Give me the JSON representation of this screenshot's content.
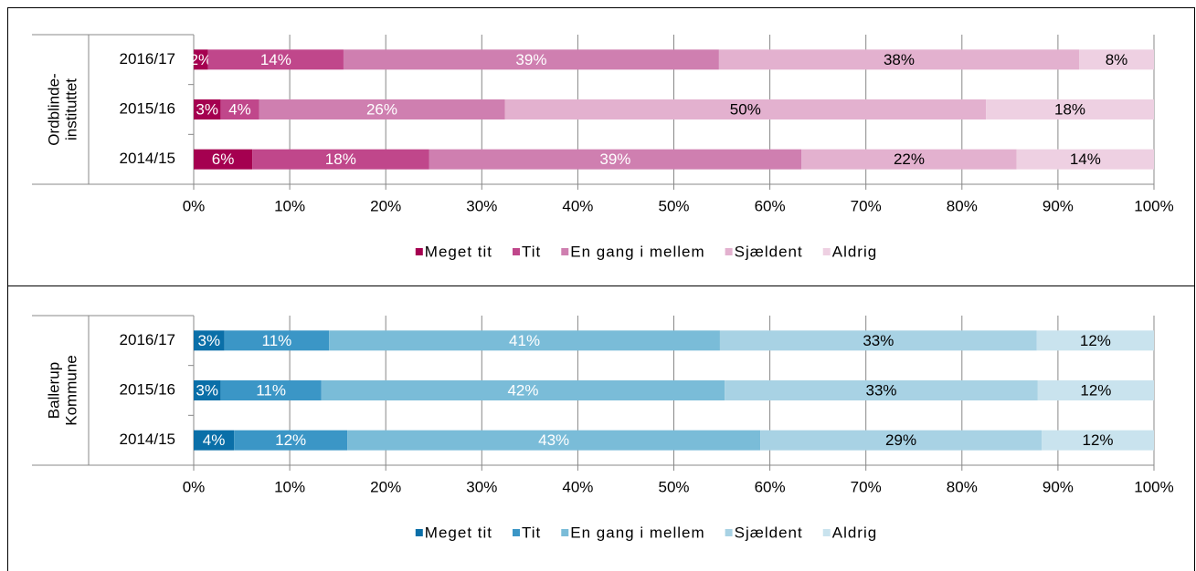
{
  "chart_data": [
    {
      "type": "stacked-bar-horizontal",
      "group_label": [
        "Ordblinde-",
        "instituttet"
      ],
      "categories": [
        "2016/17",
        "2015/16",
        "2014/15"
      ],
      "series": [
        {
          "name": "Meget tit",
          "color": "#a50050",
          "label_color": "#ffffff",
          "values": [
            1.5,
            2.8,
            6.1
          ],
          "value_labels": [
            "2%",
            "3%",
            "6%"
          ]
        },
        {
          "name": "Tit",
          "color": "#c0478b",
          "label_color": "#ffffff",
          "values": [
            14.1,
            4.0,
            18.4
          ],
          "value_labels": [
            "14%",
            "4%",
            "18%"
          ]
        },
        {
          "name": "En gang i mellem",
          "color": "#cf7fb0",
          "label_color": "#ffffff",
          "values": [
            39.1,
            25.6,
            38.8
          ],
          "value_labels": [
            "39%",
            "26%",
            "39%"
          ]
        },
        {
          "name": "Sjældent",
          "color": "#e3b1cf",
          "label_color": "#000000",
          "values": [
            37.5,
            50.1,
            22.4
          ],
          "value_labels": [
            "38%",
            "50%",
            "22%"
          ]
        },
        {
          "name": "Aldrig",
          "color": "#eed0e2",
          "label_color": "#000000",
          "values": [
            7.8,
            17.5,
            14.3
          ],
          "value_labels": [
            "8%",
            "18%",
            "14%"
          ]
        }
      ],
      "xlim": [
        0,
        100
      ],
      "xticks": [
        {
          "value": 0,
          "label": "0%"
        },
        {
          "value": 10,
          "label": "10%"
        },
        {
          "value": 20,
          "label": "20%"
        },
        {
          "value": 30,
          "label": "30%"
        },
        {
          "value": 40,
          "label": "40%"
        },
        {
          "value": 50,
          "label": "50%"
        },
        {
          "value": 60,
          "label": "60%"
        },
        {
          "value": 70,
          "label": "70%"
        },
        {
          "value": 80,
          "label": "80%"
        },
        {
          "value": 90,
          "label": "90%"
        },
        {
          "value": 100,
          "label": "100%"
        }
      ],
      "grid": true,
      "legend": "bottom"
    },
    {
      "type": "stacked-bar-horizontal",
      "group_label": [
        "Ballerup",
        "Kommune"
      ],
      "categories": [
        "2016/17",
        "2015/16",
        "2014/15"
      ],
      "series": [
        {
          "name": "Meget tit",
          "color": "#0a6fa8",
          "label_color": "#ffffff",
          "values": [
            3.2,
            2.8,
            4.2
          ],
          "value_labels": [
            "3%",
            "3%",
            "4%"
          ]
        },
        {
          "name": "Tit",
          "color": "#3b96c6",
          "label_color": "#ffffff",
          "values": [
            10.9,
            10.5,
            11.8
          ],
          "value_labels": [
            "11%",
            "11%",
            "12%"
          ]
        },
        {
          "name": "En gang i mellem",
          "color": "#7abcd8",
          "label_color": "#ffffff",
          "values": [
            40.7,
            42.0,
            43.0
          ],
          "value_labels": [
            "41%",
            "42%",
            "43%"
          ]
        },
        {
          "name": "Sjældent",
          "color": "#a8d2e4",
          "label_color": "#000000",
          "values": [
            33.0,
            32.6,
            29.3
          ],
          "value_labels": [
            "33%",
            "33%",
            "29%"
          ]
        },
        {
          "name": "Aldrig",
          "color": "#c9e3ee",
          "label_color": "#000000",
          "values": [
            12.2,
            12.1,
            11.7
          ],
          "value_labels": [
            "12%",
            "12%",
            "12%"
          ]
        }
      ],
      "xlim": [
        0,
        100
      ],
      "xticks": [
        {
          "value": 0,
          "label": "0%"
        },
        {
          "value": 10,
          "label": "10%"
        },
        {
          "value": 20,
          "label": "20%"
        },
        {
          "value": 30,
          "label": "30%"
        },
        {
          "value": 40,
          "label": "40%"
        },
        {
          "value": 50,
          "label": "50%"
        },
        {
          "value": 60,
          "label": "60%"
        },
        {
          "value": 70,
          "label": "70%"
        },
        {
          "value": 80,
          "label": "80%"
        },
        {
          "value": 90,
          "label": "90%"
        },
        {
          "value": 100,
          "label": "100%"
        }
      ],
      "grid": true,
      "legend": "bottom"
    }
  ]
}
